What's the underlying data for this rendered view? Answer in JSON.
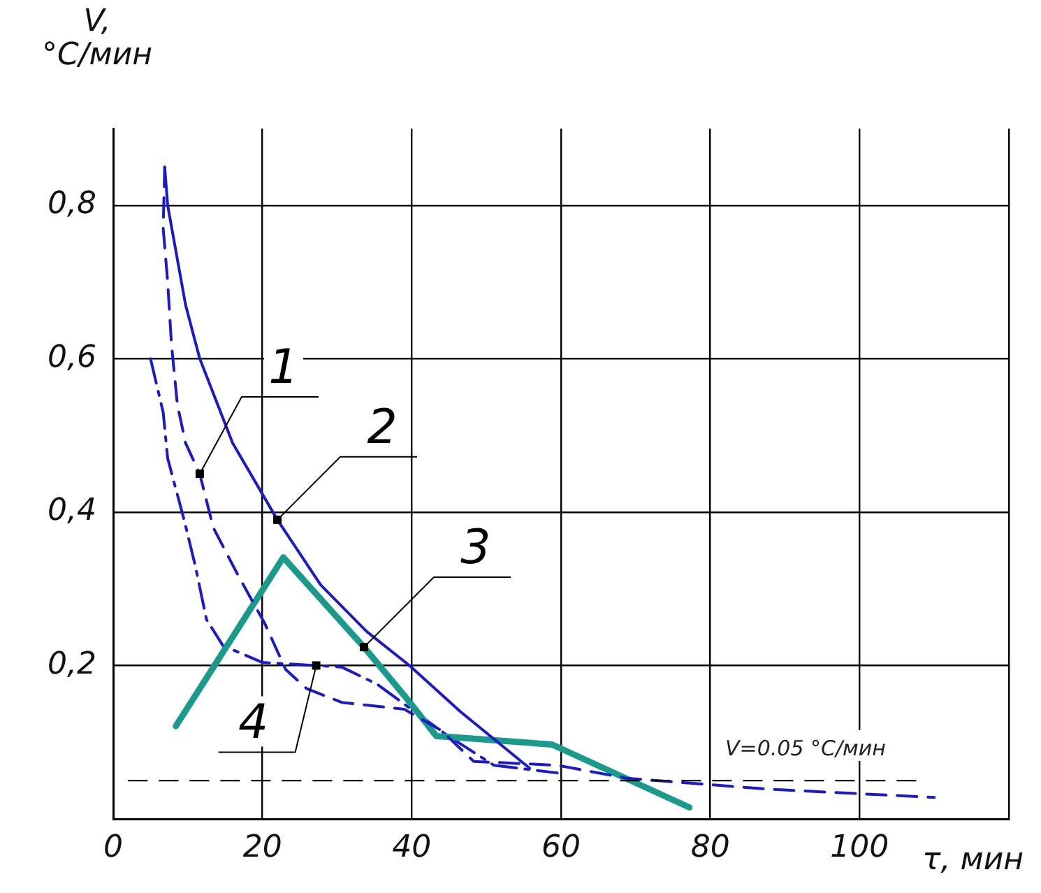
{
  "chart_data": {
    "type": "line",
    "xlabel": "τ, мин",
    "ylabel": "V,\n°C/мин",
    "xlim": [
      0,
      120
    ],
    "xticks": [
      0,
      20,
      40,
      60,
      80,
      100,
      {
        "value": 120,
        "label": null
      }
    ],
    "ylim": [
      0,
      0.9
    ],
    "yticks": [
      {
        "value": 0,
        "label": null
      },
      {
        "value": 0.2,
        "label": "0,2"
      },
      {
        "value": 0.4,
        "label": "0,4"
      },
      {
        "value": 0.6,
        "label": "0,6"
      },
      {
        "value": 0.8,
        "label": "0,8"
      }
    ],
    "grid": true,
    "legend": false,
    "marker": "none",
    "series": [
      {
        "color": "#1a1ac8",
        "line_style": "dashed",
        "x": [
          6.9,
          6.7,
          7.3,
          7.8,
          8.6,
          9.7,
          11.6,
          13.4,
          16.6,
          20.3,
          23.1,
          25.9,
          30.6,
          39,
          44,
          48.3,
          59.5,
          68.8,
          87.5,
          110
        ],
        "values": [
          0.85,
          0.77,
          0.7,
          0.62,
          0.54,
          0.49,
          0.45,
          0.38,
          0.32,
          0.255,
          0.195,
          0.17,
          0.152,
          0.143,
          0.115,
          0.075,
          0.07,
          0.053,
          0.039,
          0.028
        ]
      },
      {
        "color": "#1a1ac8",
        "line_style": "solid",
        "x": [
          6.9,
          7.3,
          9.7,
          11.6,
          16,
          22,
          27.8,
          34,
          39.7,
          46.5,
          55.8
        ],
        "values": [
          0.85,
          0.8,
          0.67,
          0.6,
          0.49,
          0.39,
          0.305,
          0.244,
          0.2,
          0.14,
          0.066
        ]
      },
      {
        "color": "#1a9a8a",
        "line_style": "solid",
        "x": [
          8.4,
          22.8,
          33.6,
          39,
          43.3,
          46.5,
          58.8,
          77.2
        ],
        "values": [
          0.121,
          0.341,
          0.224,
          0.161,
          0.108,
          0.106,
          0.097,
          0.015
        ]
      },
      {
        "color": "#1a1ac8",
        "line_style": "dashdot",
        "x": [
          5,
          6.7,
          7.3,
          9.5,
          11,
          12.5,
          14.7,
          20,
          27.2,
          30.6,
          35.3,
          44.6,
          51,
          59.5
        ],
        "values": [
          0.6,
          0.53,
          0.47,
          0.39,
          0.33,
          0.26,
          0.226,
          0.204,
          0.2,
          0.198,
          0.176,
          0.11,
          0.07,
          0.06
        ]
      }
    ],
    "ref_lines": [
      {
        "axis": "y",
        "value": 0.05,
        "label": "V=0.05 °C/мин",
        "line_style": "dashed",
        "color": "#000000"
      }
    ],
    "annotations": [
      {
        "text": "1",
        "x": 11.6,
        "y": 0.45
      },
      {
        "text": "2",
        "x": 22,
        "y": 0.39
      },
      {
        "text": "3",
        "x": 33.6,
        "y": 0.224
      },
      {
        "text": "4",
        "x": 27.2,
        "y": 0.2
      }
    ]
  }
}
